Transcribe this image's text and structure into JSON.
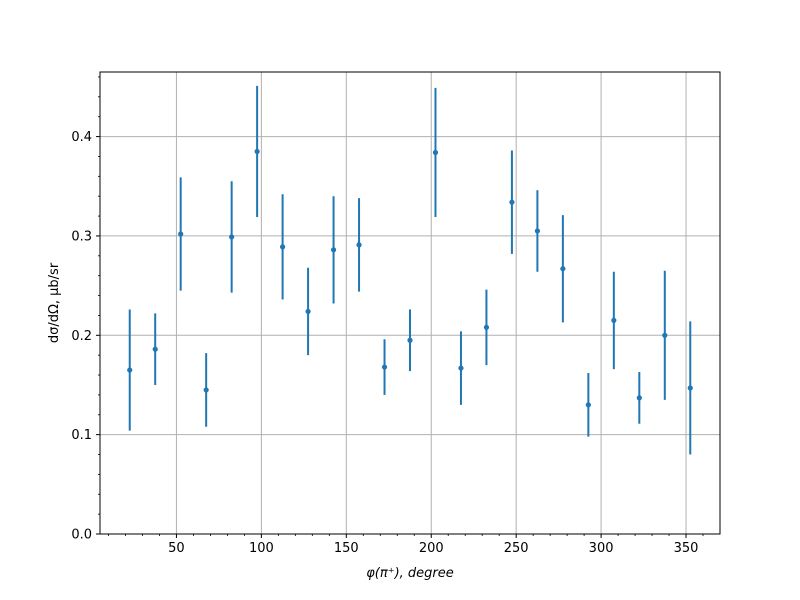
{
  "chart_data": {
    "type": "scatter",
    "xlabel": "φ(π⁺), degree",
    "ylabel": "dσ/dΩ, μb/sr",
    "xlim": [
      5,
      370
    ],
    "ylim": [
      0,
      0.465
    ],
    "xticks": [
      50,
      100,
      150,
      200,
      250,
      300,
      350
    ],
    "yticks": [
      0.0,
      0.1,
      0.2,
      0.3,
      0.4
    ],
    "xtick_labels": [
      "50",
      "100",
      "150",
      "200",
      "250",
      "300",
      "350"
    ],
    "ytick_labels": [
      "0.0",
      "0.1",
      "0.2",
      "0.3",
      "0.4"
    ],
    "grid": true,
    "color": "#1f77b4",
    "points": [
      {
        "x": 22.5,
        "y": 0.165,
        "yerr": 0.061
      },
      {
        "x": 37.5,
        "y": 0.186,
        "yerr": 0.036
      },
      {
        "x": 52.5,
        "y": 0.302,
        "yerr": 0.057
      },
      {
        "x": 67.5,
        "y": 0.145,
        "yerr": 0.037
      },
      {
        "x": 82.5,
        "y": 0.299,
        "yerr": 0.056
      },
      {
        "x": 97.5,
        "y": 0.385,
        "yerr": 0.066
      },
      {
        "x": 112.5,
        "y": 0.289,
        "yerr": 0.053
      },
      {
        "x": 127.5,
        "y": 0.224,
        "yerr": 0.044
      },
      {
        "x": 142.5,
        "y": 0.286,
        "yerr": 0.054
      },
      {
        "x": 157.5,
        "y": 0.291,
        "yerr": 0.047
      },
      {
        "x": 172.5,
        "y": 0.168,
        "yerr": 0.028
      },
      {
        "x": 187.5,
        "y": 0.195,
        "yerr": 0.031
      },
      {
        "x": 202.5,
        "y": 0.384,
        "yerr": 0.065
      },
      {
        "x": 217.5,
        "y": 0.167,
        "yerr": 0.037
      },
      {
        "x": 232.5,
        "y": 0.208,
        "yerr": 0.038
      },
      {
        "x": 247.5,
        "y": 0.334,
        "yerr": 0.052
      },
      {
        "x": 262.5,
        "y": 0.305,
        "yerr": 0.041
      },
      {
        "x": 277.5,
        "y": 0.267,
        "yerr": 0.054
      },
      {
        "x": 292.5,
        "y": 0.13,
        "yerr": 0.032
      },
      {
        "x": 307.5,
        "y": 0.215,
        "yerr": 0.049
      },
      {
        "x": 322.5,
        "y": 0.137,
        "yerr": 0.026
      },
      {
        "x": 337.5,
        "y": 0.2,
        "yerr": 0.065
      },
      {
        "x": 352.5,
        "y": 0.147,
        "yerr": 0.067
      }
    ]
  }
}
